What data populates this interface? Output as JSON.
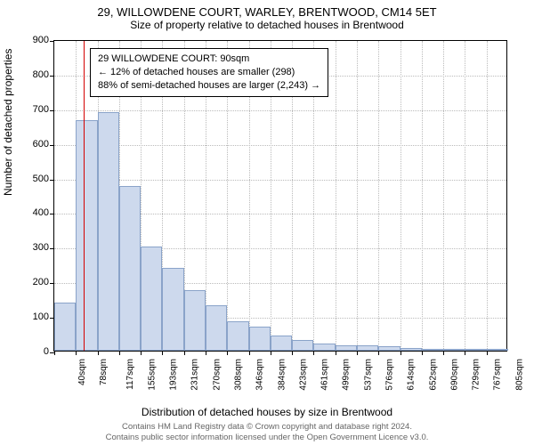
{
  "title": {
    "main": "29, WILLOWDENE COURT, WARLEY, BRENTWOOD, CM14 5ET",
    "sub": "Size of property relative to detached houses in Brentwood"
  },
  "axes": {
    "ylabel": "Number of detached properties",
    "xlabel": "Distribution of detached houses by size in Brentwood",
    "ymax": 900,
    "ytick_step": 100,
    "yticks": [
      0,
      100,
      200,
      300,
      400,
      500,
      600,
      700,
      800,
      900
    ],
    "xticks": [
      "40sqm",
      "78sqm",
      "117sqm",
      "155sqm",
      "193sqm",
      "231sqm",
      "270sqm",
      "308sqm",
      "346sqm",
      "384sqm",
      "423sqm",
      "461sqm",
      "499sqm",
      "537sqm",
      "576sqm",
      "614sqm",
      "652sqm",
      "690sqm",
      "729sqm",
      "767sqm",
      "805sqm"
    ]
  },
  "chart": {
    "type": "histogram",
    "bar_fill": "#cdd9ed",
    "bar_border": "#8aa3c9",
    "grid_color": "#bbbbbb",
    "background_color": "#ffffff",
    "values": [
      140,
      665,
      690,
      475,
      300,
      240,
      175,
      130,
      85,
      70,
      45,
      30,
      20,
      15,
      15,
      12,
      8,
      5,
      3,
      2,
      3
    ],
    "marker": {
      "x_sqm": 90,
      "color": "#d40000"
    }
  },
  "annotation": {
    "line1": "29 WILLOWDENE COURT: 90sqm",
    "line2": "← 12% of detached houses are smaller (298)",
    "line3": "88% of semi-detached houses are larger (2,243) →"
  },
  "footer": {
    "line1": "Contains HM Land Registry data © Crown copyright and database right 2024.",
    "line2": "Contains public sector information licensed under the Open Government Licence v3.0."
  }
}
